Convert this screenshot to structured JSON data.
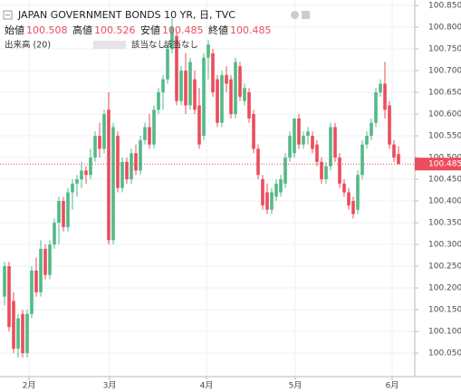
{
  "chart_data": {
    "type": "candlestick",
    "title": "JAPAN GOVERNMENT BONDS 10 YR, 日, TVC",
    "ohlc_labels": [
      "始値",
      "高値",
      "安値",
      "終値"
    ],
    "volume_label": "出来高 (20)",
    "volume_values": [
      "該当なし",
      "該当なし"
    ],
    "up_color": "#53b987",
    "down_color": "#eb4d5c",
    "grid": true,
    "ylim": [
      99.996,
      100.8625
    ],
    "yticks": [
      {
        "value": 100.05,
        "label": "100.050"
      },
      {
        "value": 100.1,
        "label": "100.100"
      },
      {
        "value": 100.15,
        "label": "100.150"
      },
      {
        "value": 100.2,
        "label": "100.200"
      },
      {
        "value": 100.25,
        "label": "100.250"
      },
      {
        "value": 100.3,
        "label": "100.300"
      },
      {
        "value": 100.35,
        "label": "100.350"
      },
      {
        "value": 100.4,
        "label": "100.400"
      },
      {
        "value": 100.45,
        "label": "100.450"
      },
      {
        "value": 100.5,
        "label": "100.500"
      },
      {
        "value": 100.55,
        "label": "100.550"
      },
      {
        "value": 100.6,
        "label": "100.600"
      },
      {
        "value": 100.65,
        "label": "100.650"
      },
      {
        "value": 100.7,
        "label": "100.700"
      },
      {
        "value": 100.75,
        "label": "100.750"
      },
      {
        "value": 100.8,
        "label": "100.800"
      },
      {
        "value": 100.85,
        "label": "100.850"
      }
    ],
    "xlim": [
      -1,
      90.6
    ],
    "xticks": [
      {
        "value": 5.4,
        "label": "2月"
      },
      {
        "value": 23.2,
        "label": "3月"
      },
      {
        "value": 44.6,
        "label": "4月"
      },
      {
        "value": 64.2,
        "label": "5月"
      },
      {
        "value": 85.6,
        "label": "6月"
      }
    ],
    "candles": [
      {
        "open": 100.18,
        "high": 100.26,
        "low": 100.16,
        "close": 100.25
      },
      {
        "open": 100.25,
        "high": 100.26,
        "low": 100.1,
        "close": 100.11
      },
      {
        "open": 100.17,
        "high": 100.19,
        "low": 100.05,
        "close": 100.06
      },
      {
        "open": 100.06,
        "high": 100.14,
        "low": 100.04,
        "close": 100.13
      },
      {
        "open": 100.14,
        "high": 100.15,
        "low": 100.04,
        "close": 100.05
      },
      {
        "open": 100.05,
        "high": 100.15,
        "low": 100.04,
        "close": 100.14
      },
      {
        "open": 100.14,
        "high": 100.25,
        "low": 100.13,
        "close": 100.24
      },
      {
        "open": 100.24,
        "high": 100.27,
        "low": 100.18,
        "close": 100.19
      },
      {
        "open": 100.19,
        "high": 100.31,
        "low": 100.18,
        "close": 100.29
      },
      {
        "open": 100.29,
        "high": 100.3,
        "low": 100.22,
        "close": 100.23
      },
      {
        "open": 100.23,
        "high": 100.31,
        "low": 100.22,
        "close": 100.3
      },
      {
        "open": 100.3,
        "high": 100.36,
        "low": 100.29,
        "close": 100.35
      },
      {
        "open": 100.35,
        "high": 100.41,
        "low": 100.3,
        "close": 100.4
      },
      {
        "open": 100.4,
        "high": 100.41,
        "low": 100.33,
        "close": 100.34
      },
      {
        "open": 100.34,
        "high": 100.43,
        "low": 100.33,
        "close": 100.42
      },
      {
        "open": 100.42,
        "high": 100.45,
        "low": 100.38,
        "close": 100.44
      },
      {
        "open": 100.44,
        "high": 100.46,
        "low": 100.41,
        "close": 100.45
      },
      {
        "open": 100.45,
        "high": 100.49,
        "low": 100.43,
        "close": 100.47
      },
      {
        "open": 100.47,
        "high": 100.48,
        "low": 100.44,
        "close": 100.46
      },
      {
        "open": 100.46,
        "high": 100.52,
        "low": 100.45,
        "close": 100.5
      },
      {
        "open": 100.5,
        "high": 100.56,
        "low": 100.49,
        "close": 100.55
      },
      {
        "open": 100.55,
        "high": 100.58,
        "low": 100.5,
        "close": 100.52
      },
      {
        "open": 100.52,
        "high": 100.61,
        "low": 100.51,
        "close": 100.6
      },
      {
        "open": 100.61,
        "high": 100.65,
        "low": 100.3,
        "close": 100.31
      },
      {
        "open": 100.31,
        "high": 100.58,
        "low": 100.3,
        "close": 100.57
      },
      {
        "open": 100.55,
        "high": 100.56,
        "low": 100.42,
        "close": 100.43
      },
      {
        "open": 100.43,
        "high": 100.5,
        "low": 100.42,
        "close": 100.49
      },
      {
        "open": 100.49,
        "high": 100.5,
        "low": 100.44,
        "close": 100.45
      },
      {
        "open": 100.45,
        "high": 100.52,
        "low": 100.44,
        "close": 100.51
      },
      {
        "open": 100.51,
        "high": 100.53,
        "low": 100.46,
        "close": 100.47
      },
      {
        "open": 100.47,
        "high": 100.55,
        "low": 100.46,
        "close": 100.54
      },
      {
        "open": 100.54,
        "high": 100.58,
        "low": 100.53,
        "close": 100.57
      },
      {
        "open": 100.57,
        "high": 100.6,
        "low": 100.52,
        "close": 100.53
      },
      {
        "open": 100.53,
        "high": 100.62,
        "low": 100.52,
        "close": 100.61
      },
      {
        "open": 100.61,
        "high": 100.66,
        "low": 100.6,
        "close": 100.65
      },
      {
        "open": 100.65,
        "high": 100.69,
        "low": 100.61,
        "close": 100.68
      },
      {
        "open": 100.68,
        "high": 100.76,
        "low": 100.67,
        "close": 100.75
      },
      {
        "open": 100.75,
        "high": 100.82,
        "low": 100.74,
        "close": 100.8
      },
      {
        "open": 100.78,
        "high": 100.79,
        "low": 100.62,
        "close": 100.63
      },
      {
        "open": 100.63,
        "high": 100.71,
        "low": 100.62,
        "close": 100.7
      },
      {
        "open": 100.7,
        "high": 100.74,
        "low": 100.6,
        "close": 100.62
      },
      {
        "open": 100.62,
        "high": 100.73,
        "low": 100.61,
        "close": 100.72
      },
      {
        "open": 100.68,
        "high": 100.7,
        "low": 100.6,
        "close": 100.61
      },
      {
        "open": 100.62,
        "high": 100.66,
        "low": 100.52,
        "close": 100.53
      },
      {
        "open": 100.55,
        "high": 100.74,
        "low": 100.54,
        "close": 100.73
      },
      {
        "open": 100.73,
        "high": 100.77,
        "low": 100.68,
        "close": 100.76
      },
      {
        "open": 100.74,
        "high": 100.75,
        "low": 100.64,
        "close": 100.65
      },
      {
        "open": 100.68,
        "high": 100.69,
        "low": 100.57,
        "close": 100.58
      },
      {
        "open": 100.58,
        "high": 100.7,
        "low": 100.57,
        "close": 100.69
      },
      {
        "open": 100.69,
        "high": 100.71,
        "low": 100.65,
        "close": 100.67
      },
      {
        "open": 100.68,
        "high": 100.69,
        "low": 100.59,
        "close": 100.6
      },
      {
        "open": 100.6,
        "high": 100.73,
        "low": 100.59,
        "close": 100.72
      },
      {
        "open": 100.71,
        "high": 100.72,
        "low": 100.63,
        "close": 100.64
      },
      {
        "open": 100.63,
        "high": 100.67,
        "low": 100.62,
        "close": 100.66
      },
      {
        "open": 100.65,
        "high": 100.66,
        "low": 100.58,
        "close": 100.59
      },
      {
        "open": 100.6,
        "high": 100.61,
        "low": 100.51,
        "close": 100.52
      },
      {
        "open": 100.52,
        "high": 100.53,
        "low": 100.45,
        "close": 100.46
      },
      {
        "open": 100.45,
        "high": 100.46,
        "low": 100.38,
        "close": 100.39
      },
      {
        "open": 100.42,
        "high": 100.44,
        "low": 100.37,
        "close": 100.38
      },
      {
        "open": 100.38,
        "high": 100.43,
        "low": 100.37,
        "close": 100.42
      },
      {
        "open": 100.41,
        "high": 100.45,
        "low": 100.4,
        "close": 100.44
      },
      {
        "open": 100.42,
        "high": 100.46,
        "low": 100.41,
        "close": 100.45
      },
      {
        "open": 100.44,
        "high": 100.51,
        "low": 100.43,
        "close": 100.5
      },
      {
        "open": 100.5,
        "high": 100.56,
        "low": 100.49,
        "close": 100.55
      },
      {
        "open": 100.51,
        "high": 100.59,
        "low": 100.5,
        "close": 100.59
      },
      {
        "open": 100.59,
        "high": 100.6,
        "low": 100.52,
        "close": 100.53
      },
      {
        "open": 100.53,
        "high": 100.56,
        "low": 100.52,
        "close": 100.55
      },
      {
        "open": 100.55,
        "high": 100.57,
        "low": 100.53,
        "close": 100.56
      },
      {
        "open": 100.55,
        "high": 100.56,
        "low": 100.51,
        "close": 100.52
      },
      {
        "open": 100.53,
        "high": 100.54,
        "low": 100.48,
        "close": 100.49
      },
      {
        "open": 100.49,
        "high": 100.5,
        "low": 100.44,
        "close": 100.45
      },
      {
        "open": 100.45,
        "high": 100.49,
        "low": 100.44,
        "close": 100.48
      },
      {
        "open": 100.48,
        "high": 100.58,
        "low": 100.47,
        "close": 100.57
      },
      {
        "open": 100.57,
        "high": 100.58,
        "low": 100.49,
        "close": 100.5
      },
      {
        "open": 100.5,
        "high": 100.51,
        "low": 100.43,
        "close": 100.44
      },
      {
        "open": 100.44,
        "high": 100.45,
        "low": 100.41,
        "close": 100.42
      },
      {
        "open": 100.42,
        "high": 100.43,
        "low": 100.38,
        "close": 100.39
      },
      {
        "open": 100.4,
        "high": 100.41,
        "low": 100.36,
        "close": 100.37
      },
      {
        "open": 100.38,
        "high": 100.47,
        "low": 100.37,
        "close": 100.46
      },
      {
        "open": 100.46,
        "high": 100.54,
        "low": 100.45,
        "close": 100.53
      },
      {
        "open": 100.53,
        "high": 100.56,
        "low": 100.52,
        "close": 100.55
      },
      {
        "open": 100.55,
        "high": 100.59,
        "low": 100.54,
        "close": 100.58
      },
      {
        "open": 100.58,
        "high": 100.66,
        "low": 100.57,
        "close": 100.65
      },
      {
        "open": 100.65,
        "high": 100.68,
        "low": 100.64,
        "close": 100.67
      },
      {
        "open": 100.67,
        "high": 100.72,
        "low": 100.59,
        "close": 100.61
      },
      {
        "open": 100.62,
        "high": 100.63,
        "low": 100.52,
        "close": 100.53
      },
      {
        "open": 100.53,
        "high": 100.54,
        "low": 100.49,
        "close": 100.5
      },
      {
        "open": 100.508,
        "high": 100.526,
        "low": 100.485,
        "close": 100.485
      }
    ]
  }
}
